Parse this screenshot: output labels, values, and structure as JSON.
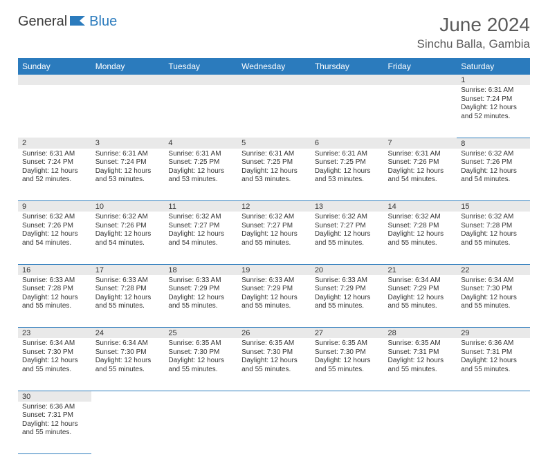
{
  "brand": {
    "textA": "General",
    "textB": "Blue"
  },
  "header": {
    "title": "June 2024",
    "location": "Sinchu Balla, Gambia"
  },
  "colors": {
    "headerBg": "#2b7bbd",
    "daynumBg": "#e9e9e9",
    "text": "#333333",
    "rule": "#2b7bbd"
  },
  "weekdays": [
    "Sunday",
    "Monday",
    "Tuesday",
    "Wednesday",
    "Thursday",
    "Friday",
    "Saturday"
  ],
  "firstWeekday": 6,
  "daysInMonth": 30,
  "days": {
    "1": {
      "sr": "6:31 AM",
      "ss": "7:24 PM",
      "dl": "12 hours and 52 minutes."
    },
    "2": {
      "sr": "6:31 AM",
      "ss": "7:24 PM",
      "dl": "12 hours and 52 minutes."
    },
    "3": {
      "sr": "6:31 AM",
      "ss": "7:24 PM",
      "dl": "12 hours and 53 minutes."
    },
    "4": {
      "sr": "6:31 AM",
      "ss": "7:25 PM",
      "dl": "12 hours and 53 minutes."
    },
    "5": {
      "sr": "6:31 AM",
      "ss": "7:25 PM",
      "dl": "12 hours and 53 minutes."
    },
    "6": {
      "sr": "6:31 AM",
      "ss": "7:25 PM",
      "dl": "12 hours and 53 minutes."
    },
    "7": {
      "sr": "6:31 AM",
      "ss": "7:26 PM",
      "dl": "12 hours and 54 minutes."
    },
    "8": {
      "sr": "6:32 AM",
      "ss": "7:26 PM",
      "dl": "12 hours and 54 minutes."
    },
    "9": {
      "sr": "6:32 AM",
      "ss": "7:26 PM",
      "dl": "12 hours and 54 minutes."
    },
    "10": {
      "sr": "6:32 AM",
      "ss": "7:26 PM",
      "dl": "12 hours and 54 minutes."
    },
    "11": {
      "sr": "6:32 AM",
      "ss": "7:27 PM",
      "dl": "12 hours and 54 minutes."
    },
    "12": {
      "sr": "6:32 AM",
      "ss": "7:27 PM",
      "dl": "12 hours and 55 minutes."
    },
    "13": {
      "sr": "6:32 AM",
      "ss": "7:27 PM",
      "dl": "12 hours and 55 minutes."
    },
    "14": {
      "sr": "6:32 AM",
      "ss": "7:28 PM",
      "dl": "12 hours and 55 minutes."
    },
    "15": {
      "sr": "6:32 AM",
      "ss": "7:28 PM",
      "dl": "12 hours and 55 minutes."
    },
    "16": {
      "sr": "6:33 AM",
      "ss": "7:28 PM",
      "dl": "12 hours and 55 minutes."
    },
    "17": {
      "sr": "6:33 AM",
      "ss": "7:28 PM",
      "dl": "12 hours and 55 minutes."
    },
    "18": {
      "sr": "6:33 AM",
      "ss": "7:29 PM",
      "dl": "12 hours and 55 minutes."
    },
    "19": {
      "sr": "6:33 AM",
      "ss": "7:29 PM",
      "dl": "12 hours and 55 minutes."
    },
    "20": {
      "sr": "6:33 AM",
      "ss": "7:29 PM",
      "dl": "12 hours and 55 minutes."
    },
    "21": {
      "sr": "6:34 AM",
      "ss": "7:29 PM",
      "dl": "12 hours and 55 minutes."
    },
    "22": {
      "sr": "6:34 AM",
      "ss": "7:30 PM",
      "dl": "12 hours and 55 minutes."
    },
    "23": {
      "sr": "6:34 AM",
      "ss": "7:30 PM",
      "dl": "12 hours and 55 minutes."
    },
    "24": {
      "sr": "6:34 AM",
      "ss": "7:30 PM",
      "dl": "12 hours and 55 minutes."
    },
    "25": {
      "sr": "6:35 AM",
      "ss": "7:30 PM",
      "dl": "12 hours and 55 minutes."
    },
    "26": {
      "sr": "6:35 AM",
      "ss": "7:30 PM",
      "dl": "12 hours and 55 minutes."
    },
    "27": {
      "sr": "6:35 AM",
      "ss": "7:30 PM",
      "dl": "12 hours and 55 minutes."
    },
    "28": {
      "sr": "6:35 AM",
      "ss": "7:31 PM",
      "dl": "12 hours and 55 minutes."
    },
    "29": {
      "sr": "6:36 AM",
      "ss": "7:31 PM",
      "dl": "12 hours and 55 minutes."
    },
    "30": {
      "sr": "6:36 AM",
      "ss": "7:31 PM",
      "dl": "12 hours and 55 minutes."
    }
  },
  "labels": {
    "sunrise": "Sunrise:",
    "sunset": "Sunset:",
    "daylight": "Daylight:"
  },
  "style": {
    "fontBody": 10,
    "fontDaynum": 11,
    "fontHeader": 12,
    "fontTitle": 28,
    "fontLocation": 17
  }
}
